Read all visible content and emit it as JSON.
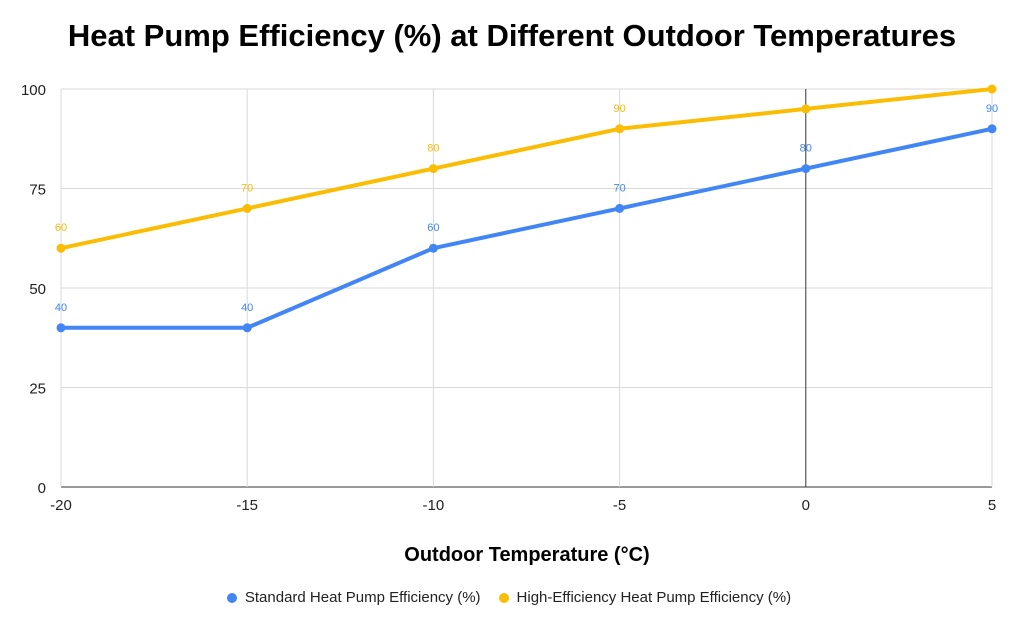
{
  "chart_data": {
    "type": "line",
    "title": "Heat Pump Efficiency (%) at Different Outdoor Temperatures",
    "xlabel": "Outdoor Temperature (°C)",
    "ylabel": "",
    "x": [
      -20,
      -15,
      -10,
      -5,
      0,
      5
    ],
    "xlim": [
      -20,
      5
    ],
    "ylim": [
      0,
      100
    ],
    "xticks": [
      "-20",
      "-15",
      "-10",
      "-5",
      "0",
      "5"
    ],
    "yticks": [
      "0",
      "25",
      "50",
      "75",
      "100"
    ],
    "grid": true,
    "legend": "bottom",
    "series": [
      {
        "name": "Standard Heat Pump Efficiency (%)",
        "color": "#4285f4",
        "values": [
          40,
          40,
          60,
          70,
          80,
          90
        ],
        "labels": [
          "40",
          "40",
          "60",
          "70",
          "80",
          "90"
        ]
      },
      {
        "name": "High-Efficiency Heat Pump Efficiency (%)",
        "color": "#fbbc04",
        "values": [
          60,
          70,
          80,
          90,
          95,
          100
        ],
        "labels": [
          "60",
          "70",
          "80",
          "90",
          null,
          null
        ]
      }
    ]
  }
}
